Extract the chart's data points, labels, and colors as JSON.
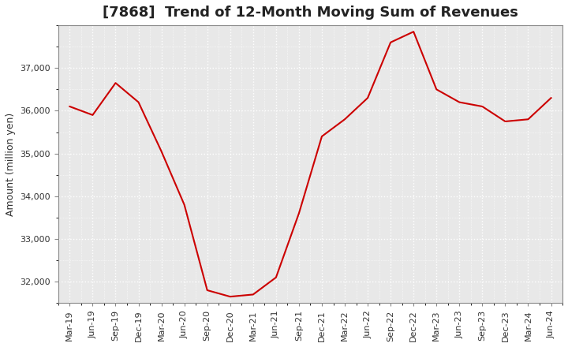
{
  "title": "[7868]  Trend of 12-Month Moving Sum of Revenues",
  "ylabel": "Amount (million yen)",
  "background_color": "#ffffff",
  "plot_bg_color": "#e8e8e8",
  "grid_color": "#ffffff",
  "line_color": "#cc0000",
  "x_labels": [
    "Mar-19",
    "Jun-19",
    "Sep-19",
    "Dec-19",
    "Mar-20",
    "Jun-20",
    "Sep-20",
    "Dec-20",
    "Mar-21",
    "Jun-21",
    "Sep-21",
    "Dec-21",
    "Mar-22",
    "Jun-22",
    "Sep-22",
    "Dec-22",
    "Mar-23",
    "Jun-23",
    "Sep-23",
    "Dec-23",
    "Mar-24",
    "Jun-24"
  ],
  "values": [
    36100,
    35900,
    36650,
    36200,
    35050,
    33800,
    31800,
    31650,
    31700,
    32100,
    33600,
    35400,
    35800,
    36300,
    37600,
    37850,
    36500,
    36200,
    36100,
    35750,
    35800,
    36300
  ],
  "ylim": [
    31500,
    38000
  ],
  "yticks": [
    32000,
    33000,
    34000,
    35000,
    36000,
    37000
  ],
  "title_fontsize": 13,
  "tick_fontsize": 8,
  "ylabel_fontsize": 9
}
